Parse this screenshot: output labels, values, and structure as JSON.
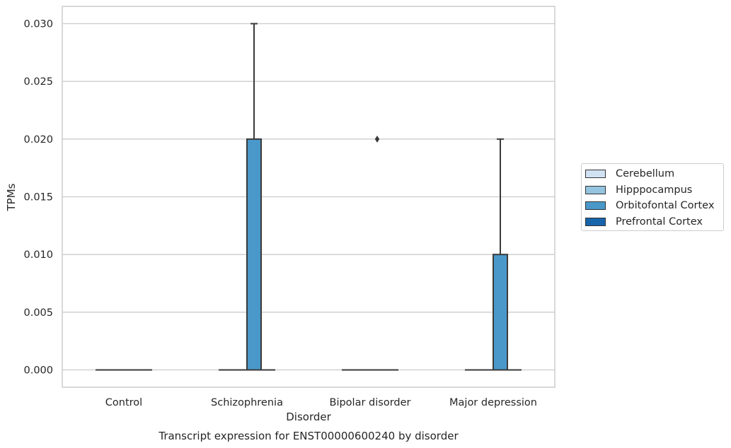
{
  "chart_data": {
    "type": "box",
    "title": "Transcript expression for ENST00000600240 by disorder",
    "xlabel": "Disorder",
    "ylabel": "TPMs",
    "categories": [
      "Control",
      "Schizophrenia",
      "Bipolar disorder",
      "Major depression"
    ],
    "ylim": [
      -0.0015,
      0.0315
    ],
    "yticks": [
      "0.000",
      "0.005",
      "0.010",
      "0.015",
      "0.020",
      "0.025",
      "0.030"
    ],
    "ytick_values": [
      0,
      0.005,
      0.01,
      0.015,
      0.02,
      0.025,
      0.03
    ],
    "grid": "horizontal",
    "legend_placement": "right",
    "series": [
      {
        "name": "Cerebellum",
        "color": "#d0e1f2",
        "boxes": [
          {
            "q1": 0,
            "median": 0,
            "q3": 0,
            "whisker_low": 0,
            "whisker_high": 0,
            "outliers": []
          },
          {
            "q1": 0,
            "median": 0,
            "q3": 0,
            "whisker_low": 0,
            "whisker_high": 0,
            "outliers": []
          },
          {
            "q1": 0,
            "median": 0,
            "q3": 0,
            "whisker_low": 0,
            "whisker_high": 0,
            "outliers": []
          },
          {
            "q1": 0,
            "median": 0,
            "q3": 0,
            "whisker_low": 0,
            "whisker_high": 0,
            "outliers": []
          }
        ]
      },
      {
        "name": "Hipppocampus",
        "color": "#94c4df",
        "boxes": [
          {
            "q1": 0,
            "median": 0,
            "q3": 0,
            "whisker_low": 0,
            "whisker_high": 0,
            "outliers": []
          },
          {
            "q1": 0,
            "median": 0,
            "q3": 0,
            "whisker_low": 0,
            "whisker_high": 0,
            "outliers": []
          },
          {
            "q1": 0,
            "median": 0,
            "q3": 0,
            "whisker_low": 0,
            "whisker_high": 0,
            "outliers": []
          },
          {
            "q1": 0,
            "median": 0,
            "q3": 0,
            "whisker_low": 0,
            "whisker_high": 0,
            "outliers": []
          }
        ]
      },
      {
        "name": "Orbitofontal Cortex",
        "color": "#4a98c9",
        "boxes": [
          {
            "q1": 0,
            "median": 0,
            "q3": 0,
            "whisker_low": 0,
            "whisker_high": 0,
            "outliers": []
          },
          {
            "q1": 0,
            "median": 0,
            "q3": 0.02,
            "whisker_low": 0,
            "whisker_high": 0.03,
            "outliers": []
          },
          {
            "q1": 0,
            "median": 0,
            "q3": 0,
            "whisker_low": 0,
            "whisker_high": 0,
            "outliers": [
              0.02
            ]
          },
          {
            "q1": 0,
            "median": 0,
            "q3": 0.01,
            "whisker_low": 0,
            "whisker_high": 0.02,
            "outliers": []
          }
        ]
      },
      {
        "name": "Prefrontal Cortex",
        "color": "#1764ab",
        "boxes": [
          {
            "q1": 0,
            "median": 0,
            "q3": 0,
            "whisker_low": 0,
            "whisker_high": 0,
            "outliers": []
          },
          {
            "q1": 0,
            "median": 0,
            "q3": 0,
            "whisker_low": 0,
            "whisker_high": 0,
            "outliers": []
          },
          {
            "q1": 0,
            "median": 0,
            "q3": 0,
            "whisker_low": 0,
            "whisker_high": 0,
            "outliers": []
          },
          {
            "q1": 0,
            "median": 0,
            "q3": 0,
            "whisker_low": 0,
            "whisker_high": 0,
            "outliers": []
          }
        ]
      }
    ]
  }
}
